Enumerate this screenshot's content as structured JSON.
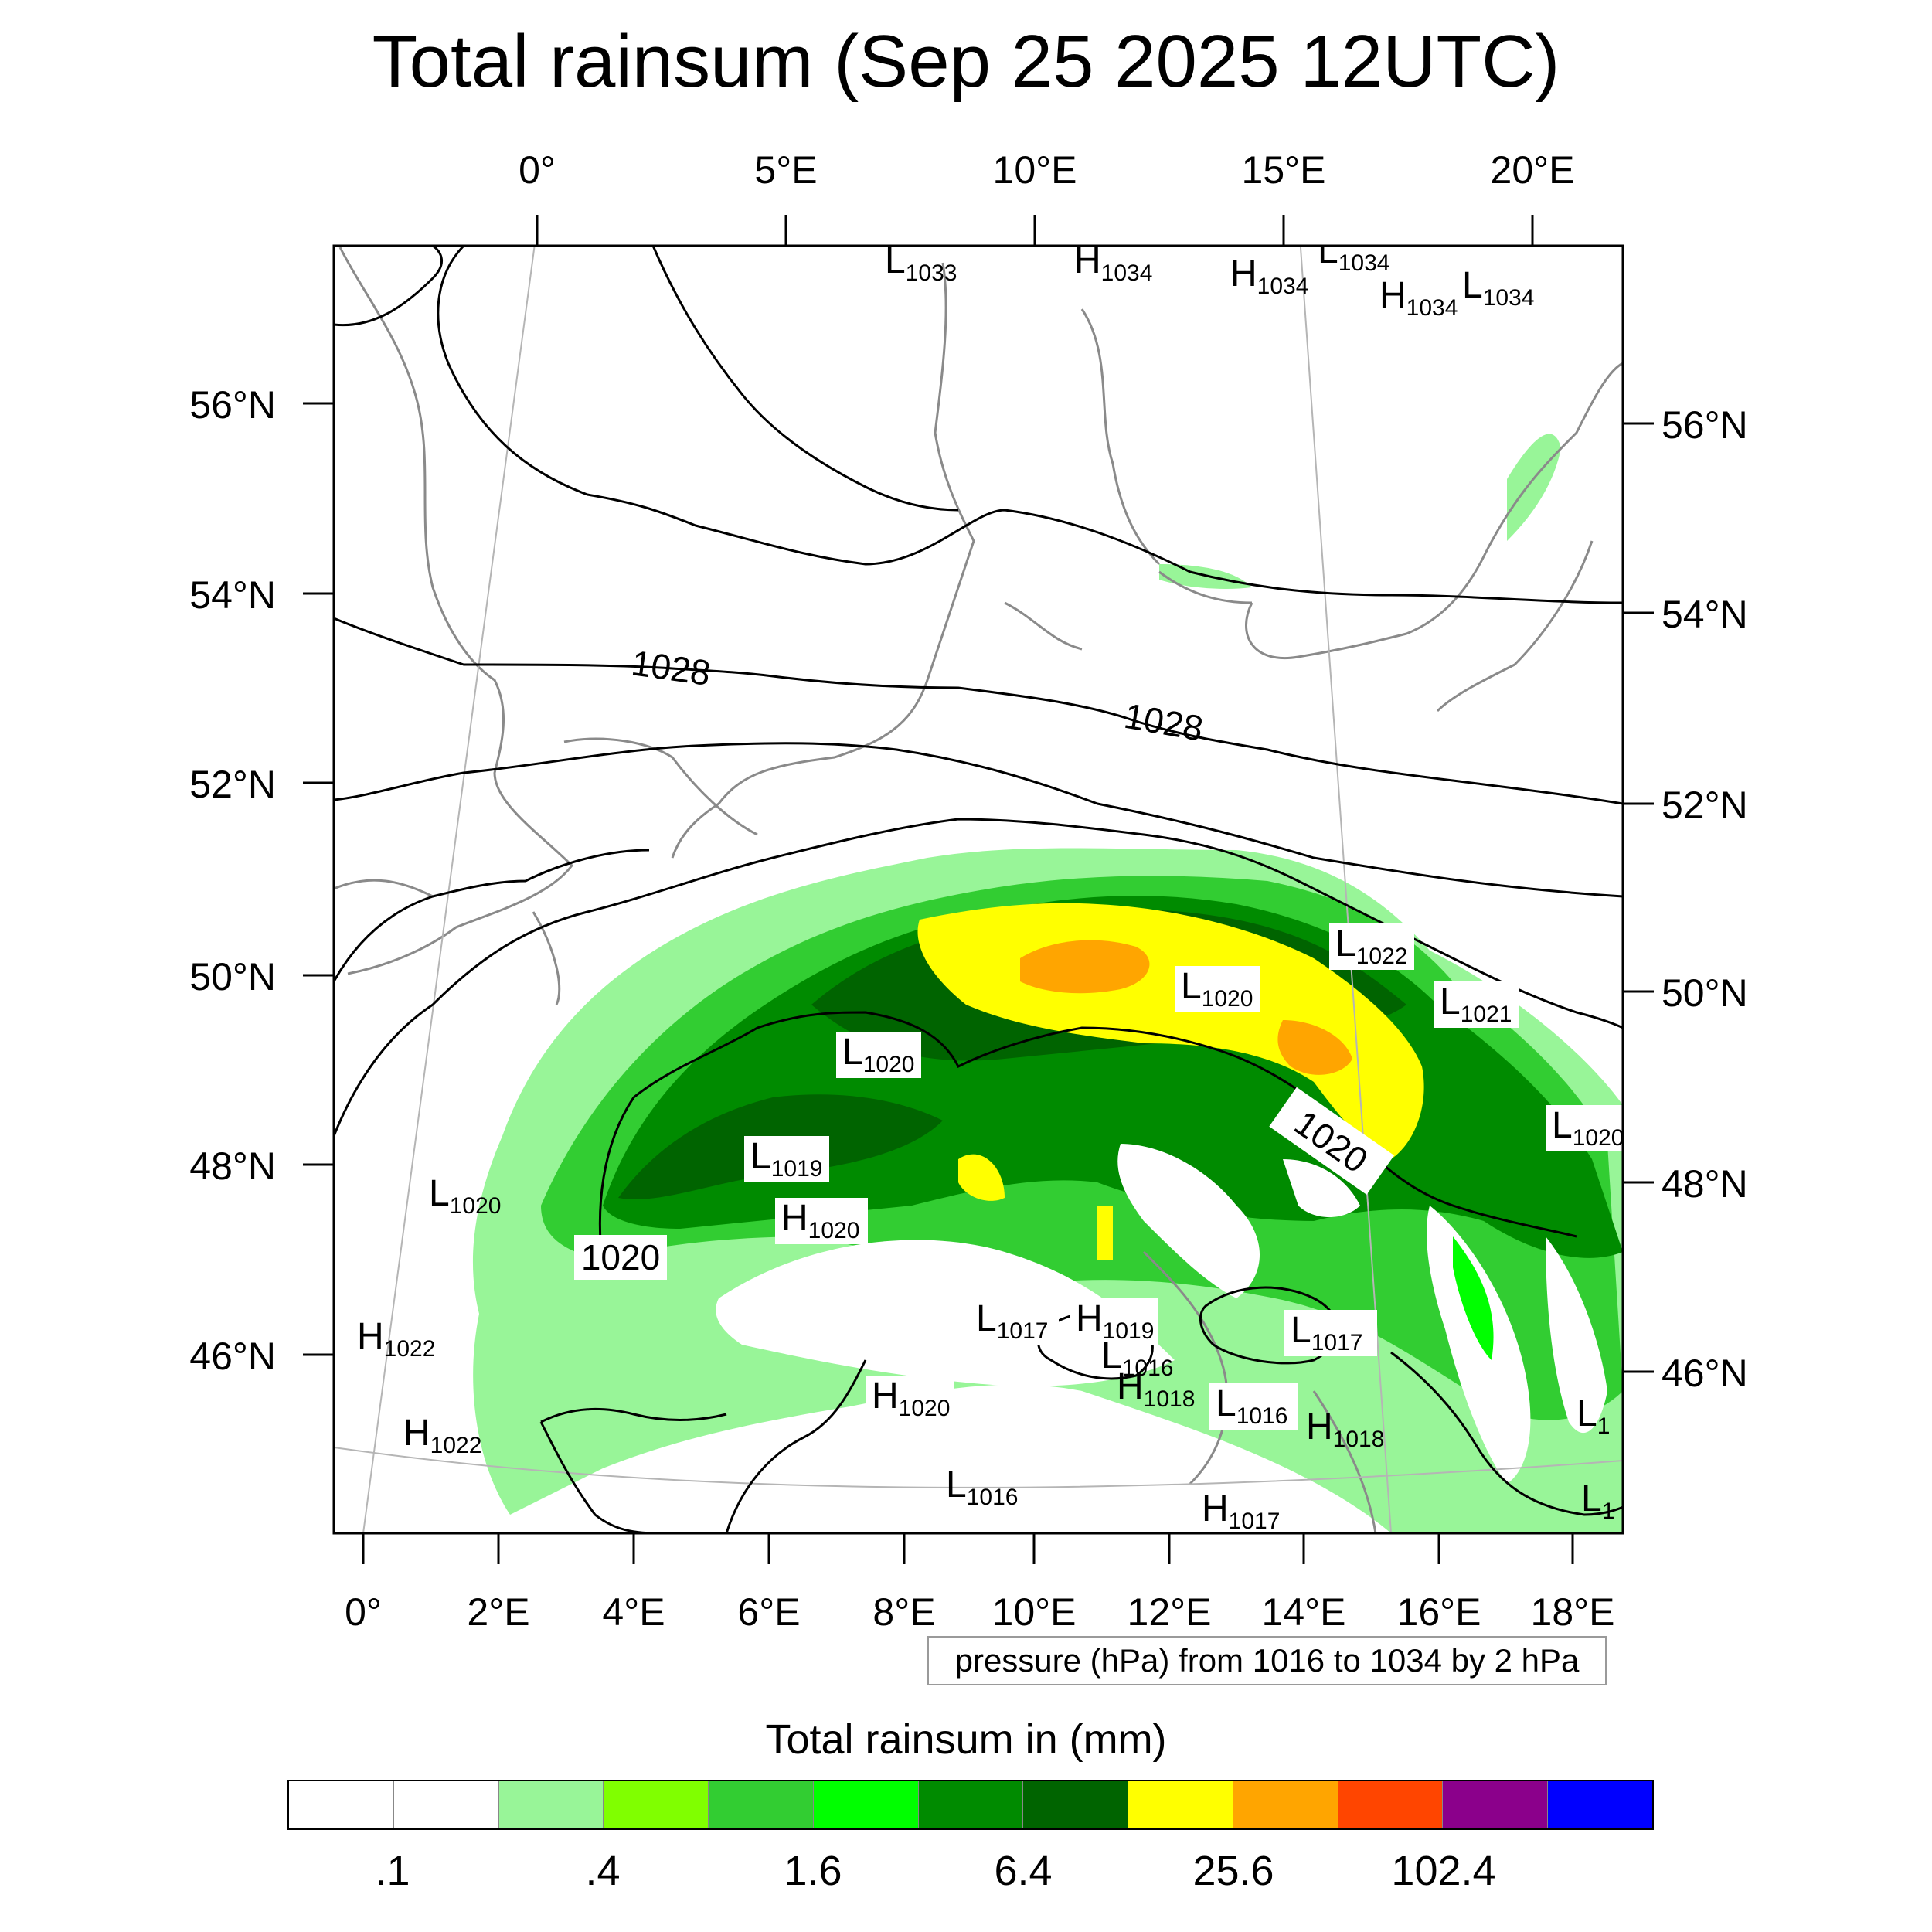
{
  "title": "Total rainsum (Sep 25 2025 12UTC)",
  "map": {
    "top_lon_labels": [
      "0°",
      "5°E",
      "10°E",
      "15°E",
      "20°E"
    ],
    "bottom_lon_labels": [
      "0°",
      "2°E",
      "4°E",
      "6°E",
      "8°E",
      "10°E",
      "12°E",
      "14°E",
      "16°E",
      "18°E"
    ],
    "left_lat_labels": [
      "56°N",
      "54°N",
      "52°N",
      "50°N",
      "48°N",
      "46°N"
    ],
    "right_lat_labels": [
      "56°N",
      "54°N",
      "52°N",
      "50°N",
      "48°N",
      "46°N"
    ],
    "isobar_labels": [
      "1028",
      "1028",
      "1020",
      "1020"
    ],
    "pressure_centers": [
      {
        "type": "L",
        "value": "1033"
      },
      {
        "type": "H",
        "value": "1034"
      },
      {
        "type": "H",
        "value": "1034"
      },
      {
        "type": "L",
        "value": "1034"
      },
      {
        "type": "H",
        "value": "1034"
      },
      {
        "type": "L",
        "value": "1034"
      },
      {
        "type": "L",
        "value": "1022"
      },
      {
        "type": "L",
        "value": "1020"
      },
      {
        "type": "L",
        "value": "1021"
      },
      {
        "type": "L",
        "value": "1020"
      },
      {
        "type": "L",
        "value": "1020"
      },
      {
        "type": "L",
        "value": "1019"
      },
      {
        "type": "H",
        "value": "1020"
      },
      {
        "type": "L",
        "value": "1020"
      },
      {
        "type": "H",
        "value": "1022"
      },
      {
        "type": "L",
        "value": "1017"
      },
      {
        "type": "H",
        "value": "1019"
      },
      {
        "type": "L",
        "value": "1016"
      },
      {
        "type": "H",
        "value": "1018"
      },
      {
        "type": "L",
        "value": "1017"
      },
      {
        "type": "H",
        "value": "1020"
      },
      {
        "type": "L",
        "value": "1016"
      },
      {
        "type": "H",
        "value": "1018"
      },
      {
        "type": "H",
        "value": "1022"
      },
      {
        "type": "L",
        "value": "1016"
      },
      {
        "type": "H",
        "value": "1017"
      },
      {
        "type": "L",
        "value": "1"
      },
      {
        "type": "L",
        "value": "1"
      }
    ],
    "info_text": "pressure (hPa) from 1016 to 1034 by 2 hPa"
  },
  "colorbar": {
    "title": "Total rainsum in (mm)",
    "colors": [
      "#ffffff",
      "#ffffff",
      "#98f598",
      "#80ff00",
      "#32cd32",
      "#00ff00",
      "#008b00",
      "#006400",
      "#ffff00",
      "#ffa500",
      "#ff4500",
      "#8b008b",
      "#0000ff"
    ],
    "labels": [
      ".1",
      ".4",
      "1.6",
      "6.4",
      "25.6",
      "102.4"
    ]
  }
}
